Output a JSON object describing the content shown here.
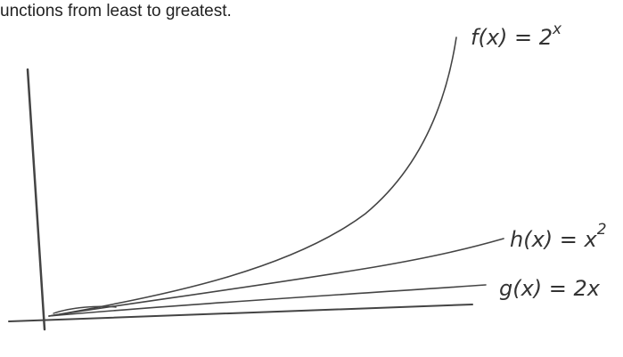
{
  "header": {
    "text": "unctions from least to greatest."
  },
  "labels": [
    {
      "base": "f(x) = 2",
      "exponent": "x"
    },
    {
      "base": "h(x) = x",
      "exponent": "2"
    },
    {
      "base": "g(x) = 2x"
    }
  ]
}
